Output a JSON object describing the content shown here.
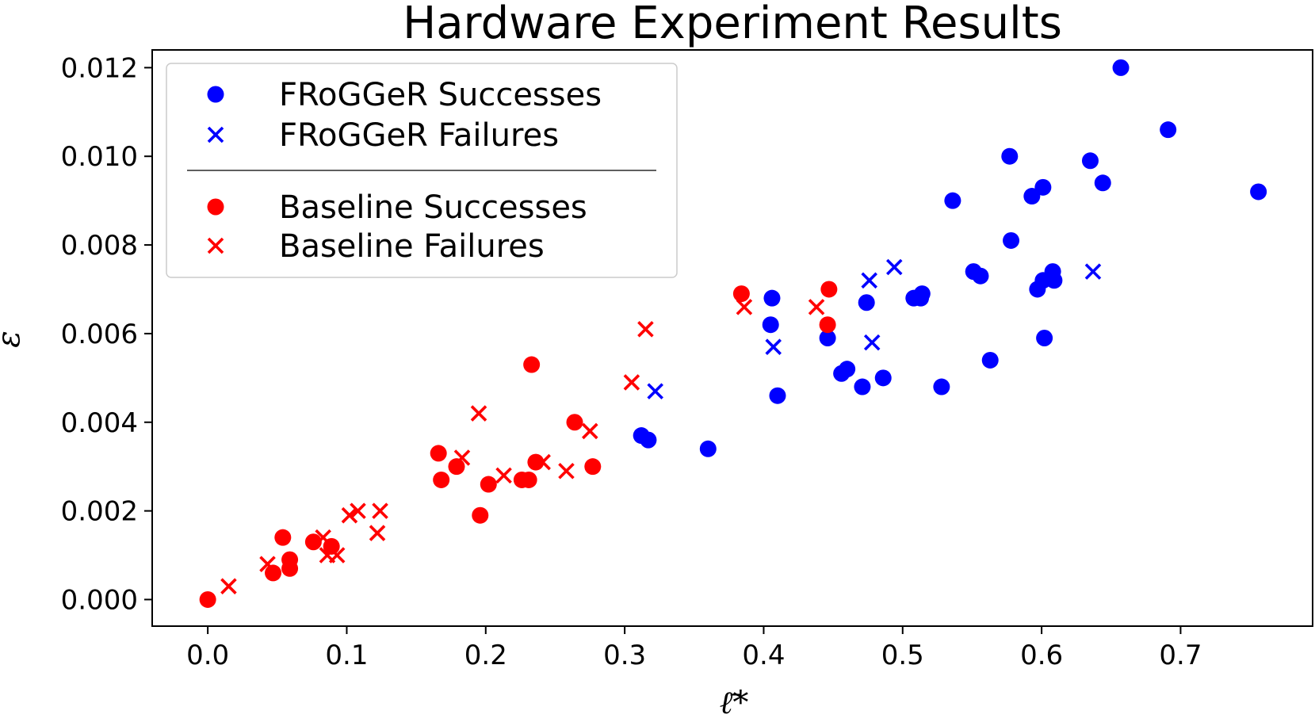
{
  "chart_data": {
    "type": "scatter",
    "title": "Hardware Experiment Results",
    "xlabel": "ℓ̄*",
    "ylabel": "ε",
    "xlim": [
      -0.04,
      0.795
    ],
    "ylim": [
      -0.0006,
      0.0124
    ],
    "x_ticks": [
      0.0,
      0.1,
      0.2,
      0.3,
      0.4,
      0.5,
      0.6,
      0.7
    ],
    "x_tick_labels": [
      "0.0",
      "0.1",
      "0.2",
      "0.3",
      "0.4",
      "0.5",
      "0.6",
      "0.7"
    ],
    "y_ticks": [
      0.0,
      0.002,
      0.004,
      0.006,
      0.008,
      0.01,
      0.012
    ],
    "y_tick_labels": [
      "0.000",
      "0.002",
      "0.004",
      "0.006",
      "0.008",
      "0.010",
      "0.012"
    ],
    "grid": false,
    "legend_position": "top-left",
    "series": [
      {
        "name": "FRoGGeR Successes",
        "marker": "circle",
        "color": "#0000ff",
        "points": [
          [
            0.657,
            0.012
          ],
          [
            0.691,
            0.0106
          ],
          [
            0.756,
            0.0092
          ],
          [
            0.577,
            0.01
          ],
          [
            0.635,
            0.0099
          ],
          [
            0.644,
            0.0094
          ],
          [
            0.601,
            0.0093
          ],
          [
            0.593,
            0.0091
          ],
          [
            0.536,
            0.009
          ],
          [
            0.578,
            0.0081
          ],
          [
            0.551,
            0.0074
          ],
          [
            0.556,
            0.0073
          ],
          [
            0.608,
            0.0074
          ],
          [
            0.609,
            0.0072
          ],
          [
            0.601,
            0.0072
          ],
          [
            0.597,
            0.007
          ],
          [
            0.514,
            0.0069
          ],
          [
            0.508,
            0.0068
          ],
          [
            0.513,
            0.0068
          ],
          [
            0.406,
            0.0068
          ],
          [
            0.474,
            0.0067
          ],
          [
            0.405,
            0.0062
          ],
          [
            0.446,
            0.0059
          ],
          [
            0.602,
            0.0059
          ],
          [
            0.563,
            0.0054
          ],
          [
            0.46,
            0.0052
          ],
          [
            0.456,
            0.0051
          ],
          [
            0.486,
            0.005
          ],
          [
            0.471,
            0.0048
          ],
          [
            0.528,
            0.0048
          ],
          [
            0.41,
            0.0046
          ],
          [
            0.312,
            0.0037
          ],
          [
            0.317,
            0.0036
          ],
          [
            0.36,
            0.0034
          ]
        ]
      },
      {
        "name": "FRoGGeR Failures",
        "marker": "x",
        "color": "#0000ff",
        "points": [
          [
            0.494,
            0.0075
          ],
          [
            0.476,
            0.0072
          ],
          [
            0.637,
            0.0074
          ],
          [
            0.407,
            0.0057
          ],
          [
            0.478,
            0.0058
          ],
          [
            0.322,
            0.0047
          ]
        ]
      },
      {
        "name": "Baseline Successes",
        "marker": "circle",
        "color": "#ff0000",
        "points": [
          [
            0.384,
            0.0069
          ],
          [
            0.447,
            0.007
          ],
          [
            0.446,
            0.0062
          ],
          [
            0.233,
            0.0053
          ],
          [
            0.264,
            0.004
          ],
          [
            0.166,
            0.0033
          ],
          [
            0.236,
            0.0031
          ],
          [
            0.277,
            0.003
          ],
          [
            0.179,
            0.003
          ],
          [
            0.168,
            0.0027
          ],
          [
            0.226,
            0.0027
          ],
          [
            0.231,
            0.0027
          ],
          [
            0.202,
            0.0026
          ],
          [
            0.196,
            0.0019
          ],
          [
            0.054,
            0.0014
          ],
          [
            0.076,
            0.0013
          ],
          [
            0.089,
            0.0012
          ],
          [
            0.059,
            0.0009
          ],
          [
            0.059,
            0.0007
          ],
          [
            0.047,
            0.0006
          ],
          [
            0.0,
            0.0
          ]
        ]
      },
      {
        "name": "Baseline Failures",
        "marker": "x",
        "color": "#ff0000",
        "points": [
          [
            0.315,
            0.0061
          ],
          [
            0.386,
            0.0066
          ],
          [
            0.438,
            0.0066
          ],
          [
            0.305,
            0.0049
          ],
          [
            0.195,
            0.0042
          ],
          [
            0.275,
            0.0038
          ],
          [
            0.183,
            0.0032
          ],
          [
            0.241,
            0.0031
          ],
          [
            0.258,
            0.0029
          ],
          [
            0.213,
            0.0028
          ],
          [
            0.124,
            0.002
          ],
          [
            0.108,
            0.002
          ],
          [
            0.102,
            0.0019
          ],
          [
            0.122,
            0.0015
          ],
          [
            0.083,
            0.0014
          ],
          [
            0.086,
            0.001
          ],
          [
            0.093,
            0.001
          ],
          [
            0.043,
            0.0008
          ],
          [
            0.015,
            0.0003
          ]
        ]
      }
    ]
  }
}
